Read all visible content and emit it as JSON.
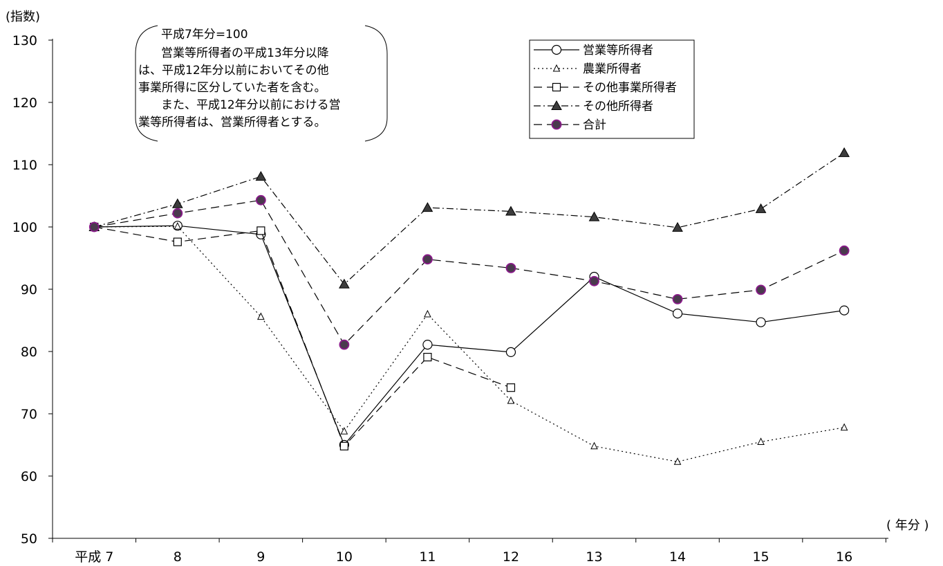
{
  "chart_data": {
    "type": "line",
    "ylabel": "(指数)",
    "xlabel": "( 年分 )",
    "ylim": [
      50,
      130
    ],
    "yticks": [
      50,
      60,
      70,
      80,
      90,
      100,
      110,
      120,
      130
    ],
    "categories": [
      "平成 7",
      "8",
      "9",
      "10",
      "11",
      "12",
      "13",
      "14",
      "15",
      "16"
    ],
    "note": [
      "平成7年分=100",
      "営業等所得者の平成13年分以降",
      "は、平成12年分以前においてその他",
      "事業所得に区分していた者を含む。",
      "また、平成12年分以前における営",
      "業等所得者は、営業所得者とする。"
    ],
    "legend_position": "top-right",
    "grid": false,
    "series": [
      {
        "name": "営業等所得者",
        "line_style": "solid",
        "marker": "open-circle",
        "values": [
          100,
          100.2,
          98.8,
          65,
          81.1,
          79.9,
          92,
          86.1,
          84.7,
          86.6
        ]
      },
      {
        "name": "農業所得者",
        "line_style": "dotted",
        "marker": "open-triangle",
        "values": [
          100,
          100.1,
          85.6,
          67.2,
          86,
          72.1,
          64.8,
          62.3,
          65.5,
          67.8
        ]
      },
      {
        "name": "その他事業所得者",
        "line_style": "dashed",
        "marker": "open-square",
        "values": [
          100,
          97.6,
          99.4,
          64.8,
          79.1,
          74.2,
          null,
          null,
          null,
          null
        ]
      },
      {
        "name": "その他所得者",
        "line_style": "dash-dot",
        "marker": "filled-triangle",
        "values": [
          100,
          103.7,
          108.1,
          90.8,
          103.1,
          102.5,
          101.6,
          99.9,
          102.9,
          111.9
        ]
      },
      {
        "name": "合計",
        "line_style": "dashed",
        "marker": "filled-circle",
        "marker_fill": "#4a3a4e",
        "marker_edge": "#8b1a8b",
        "values": [
          100,
          102.2,
          104.3,
          81.1,
          94.8,
          93.4,
          91.3,
          88.4,
          89.9,
          96.2
        ]
      }
    ]
  }
}
